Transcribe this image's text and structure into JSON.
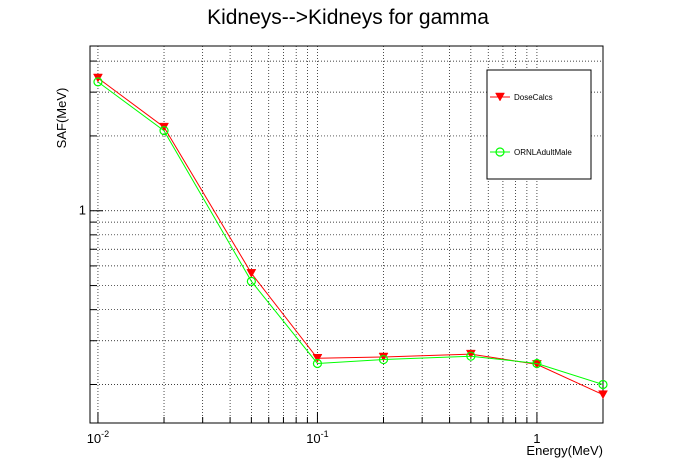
{
  "chart_data": {
    "type": "line",
    "title": "Kidneys-->Kidneys for gamma",
    "xlabel": "Energy(MeV)",
    "ylabel": "SAF(MeV)",
    "x_scale": "log",
    "y_scale": "log",
    "xlim": [
      0.0092,
      2.0
    ],
    "ylim": [
      0.14,
      4.6
    ],
    "grid": true,
    "legend_position": "top-right",
    "x_ticks": [
      {
        "value": 0.01,
        "base": "10",
        "exp": "-2"
      },
      {
        "value": 0.1,
        "base": "10",
        "exp": "-1"
      },
      {
        "value": 1,
        "base": "1",
        "exp": ""
      }
    ],
    "y_ticks": [
      {
        "value": 1,
        "label": "1"
      }
    ],
    "series": [
      {
        "name": "DoseCalcs",
        "color": "#ff0000",
        "marker": "triangle-down",
        "x": [
          0.01,
          0.02,
          0.05,
          0.1,
          0.2,
          0.5,
          1.0,
          2.0
        ],
        "y": [
          3.42,
          2.17,
          0.56,
          0.255,
          0.258,
          0.265,
          0.241,
          0.182
        ]
      },
      {
        "name": "ORNLAdultMale",
        "color": "#00ff00",
        "marker": "open-circle",
        "x": [
          0.01,
          0.02,
          0.05,
          0.1,
          0.2,
          0.5,
          1.0,
          2.0
        ],
        "y": [
          3.3,
          2.1,
          0.52,
          0.243,
          0.252,
          0.26,
          0.243,
          0.2
        ]
      }
    ]
  }
}
